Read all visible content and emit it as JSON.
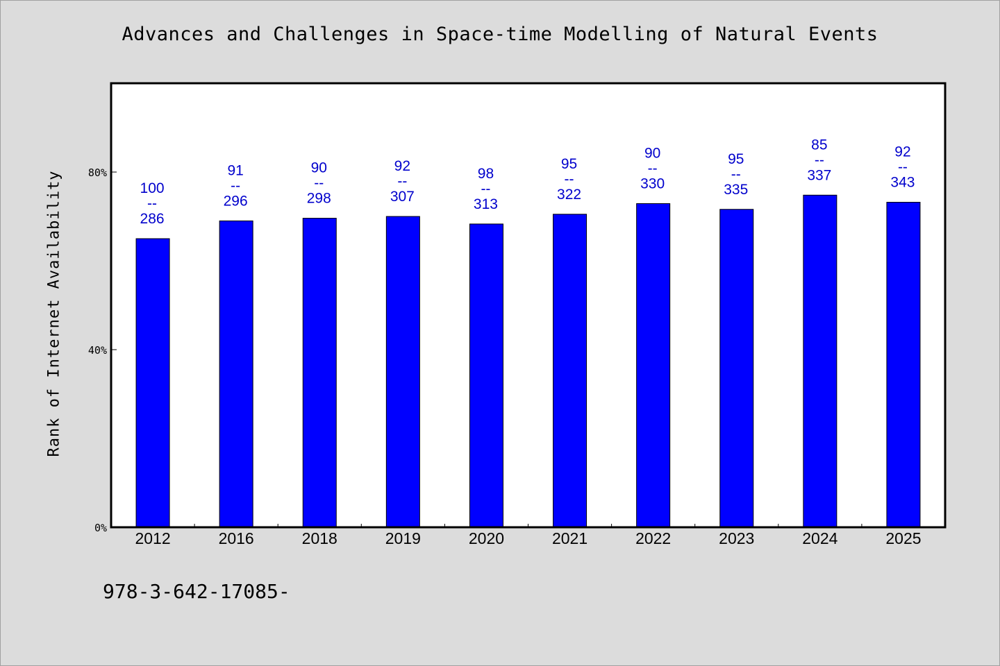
{
  "title": "Advances and Challenges in Space-time Modelling of Natural Events",
  "footnote": "978-3-642-17085-",
  "colors": {
    "background": "#dcdcdc",
    "plot_background": "#ffffff",
    "bar": "#0000ff",
    "label": "#0000cc"
  },
  "chart_data": {
    "type": "bar",
    "title": "Advances and Challenges in Space-time Modelling of Natural Events",
    "xlabel": "",
    "ylabel": "Rank of Internet Availability",
    "categories": [
      "2012",
      "2016",
      "2018",
      "2019",
      "2020",
      "2021",
      "2022",
      "2023",
      "2024",
      "2025"
    ],
    "values": [
      65.0,
      69.0,
      69.6,
      70.0,
      68.3,
      70.5,
      72.9,
      71.6,
      74.8,
      73.2
    ],
    "value_unit": "%",
    "bar_labels": [
      {
        "top": "100",
        "sep": "--",
        "bottom": "286"
      },
      {
        "top": "91",
        "sep": "--",
        "bottom": "296"
      },
      {
        "top": "90",
        "sep": "--",
        "bottom": "298"
      },
      {
        "top": "92",
        "sep": "--",
        "bottom": "307"
      },
      {
        "top": "98",
        "sep": "--",
        "bottom": "313"
      },
      {
        "top": "95",
        "sep": "--",
        "bottom": "322"
      },
      {
        "top": "90",
        "sep": "--",
        "bottom": "330"
      },
      {
        "top": "95",
        "sep": "--",
        "bottom": "335"
      },
      {
        "top": "85",
        "sep": "--",
        "bottom": "337"
      },
      {
        "top": "92",
        "sep": "--",
        "bottom": "343"
      }
    ],
    "ylim": [
      0,
      100
    ],
    "yticks": [
      {
        "value": 0,
        "label": "0%"
      },
      {
        "value": 40,
        "label": "40%"
      },
      {
        "value": 80,
        "label": "80%"
      }
    ],
    "grid": false,
    "legend": "none"
  }
}
